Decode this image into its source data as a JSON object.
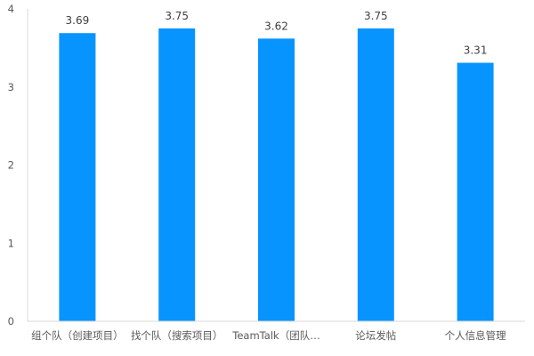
{
  "chart_data": {
    "type": "bar",
    "categories": [
      "组个队（创建项目）",
      "找个队（搜索项目）",
      "TeamTalk（团队…",
      "论坛发帖",
      "个人信息管理"
    ],
    "values": [
      3.69,
      3.75,
      3.62,
      3.75,
      3.31
    ],
    "title": "",
    "xlabel": "",
    "ylabel": "",
    "ylim": [
      0,
      4
    ],
    "yticks": [
      0,
      1,
      2,
      3,
      4
    ],
    "bar_color": "#0894ff",
    "grid": false,
    "legend": "none"
  }
}
